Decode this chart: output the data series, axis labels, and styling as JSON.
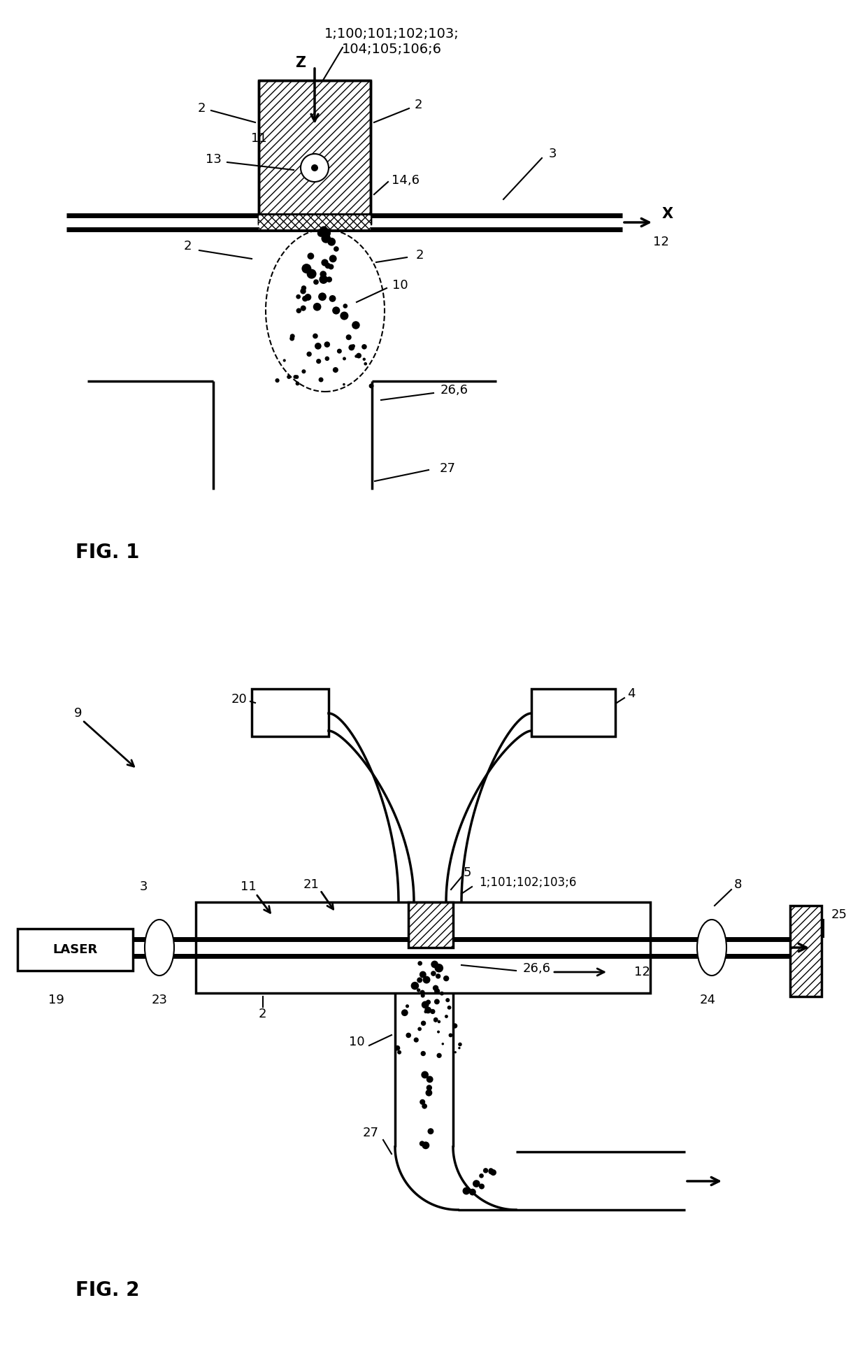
{
  "fig_width": 12.4,
  "fig_height": 19.29,
  "bg_color": "#ffffff",
  "fig1_label": "FIG. 1",
  "fig2_label": "FIG. 2",
  "laser_label": "LASER"
}
